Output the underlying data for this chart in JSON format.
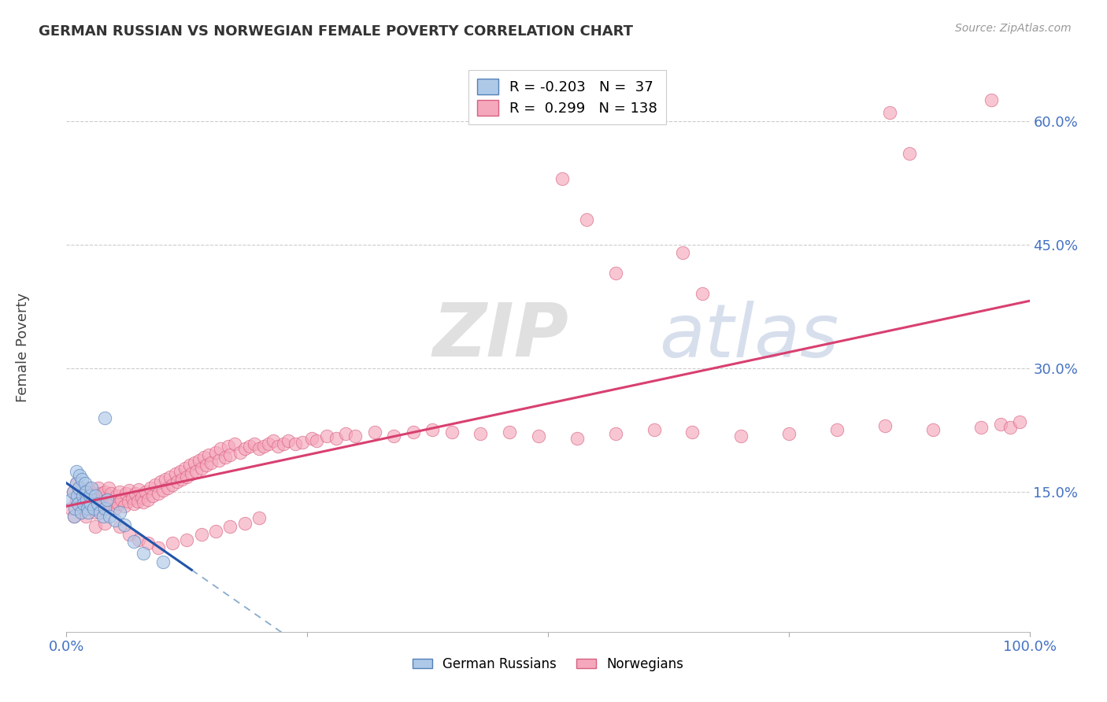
{
  "title": "GERMAN RUSSIAN VS NORWEGIAN FEMALE POVERTY CORRELATION CHART",
  "source": "Source: ZipAtlas.com",
  "ylabel": "Female Poverty",
  "xlim": [
    0.0,
    1.0
  ],
  "ylim": [
    -0.02,
    0.67
  ],
  "yticks": [
    0.15,
    0.3,
    0.45,
    0.6
  ],
  "ytick_labels": [
    "15.0%",
    "30.0%",
    "45.0%",
    "60.0%"
  ],
  "xtick_positions": [
    0.0,
    0.25,
    0.5,
    0.75,
    1.0
  ],
  "xtick_labels": [
    "0.0%",
    "",
    "",
    "",
    "100.0%"
  ],
  "gr_color_fill": "#aec8e8",
  "gr_color_edge": "#5580b8",
  "no_color_fill": "#f5a8bc",
  "no_color_edge": "#d86080",
  "line_blue": "#2255aa",
  "line_pink": "#d84070",
  "line_dashed_color": "#88aacc",
  "legend_R_gr": "-0.203",
  "legend_N_gr": 37,
  "legend_R_no": "0.299",
  "legend_N_no": 138,
  "watermark_zip": "ZIP",
  "watermark_atlas": "atlas",
  "gr_x": [
    0.005,
    0.007,
    0.008,
    0.009,
    0.01,
    0.01,
    0.011,
    0.012,
    0.013,
    0.014,
    0.015,
    0.016,
    0.017,
    0.018,
    0.019,
    0.02,
    0.021,
    0.022,
    0.023,
    0.024,
    0.025,
    0.026,
    0.028,
    0.03,
    0.032,
    0.035,
    0.038,
    0.04,
    0.042,
    0.045,
    0.05,
    0.055,
    0.06,
    0.07,
    0.08,
    0.1,
    0.04
  ],
  "gr_y": [
    0.14,
    0.15,
    0.12,
    0.13,
    0.16,
    0.175,
    0.145,
    0.135,
    0.155,
    0.17,
    0.125,
    0.165,
    0.145,
    0.135,
    0.16,
    0.15,
    0.14,
    0.13,
    0.125,
    0.145,
    0.135,
    0.155,
    0.13,
    0.145,
    0.135,
    0.125,
    0.12,
    0.13,
    0.14,
    0.12,
    0.115,
    0.125,
    0.11,
    0.09,
    0.075,
    0.065,
    0.24
  ],
  "no_x": [
    0.005,
    0.007,
    0.008,
    0.01,
    0.01,
    0.012,
    0.013,
    0.015,
    0.015,
    0.017,
    0.018,
    0.019,
    0.02,
    0.02,
    0.022,
    0.023,
    0.025,
    0.026,
    0.028,
    0.03,
    0.03,
    0.032,
    0.033,
    0.035,
    0.036,
    0.038,
    0.04,
    0.04,
    0.042,
    0.044,
    0.045,
    0.046,
    0.048,
    0.05,
    0.052,
    0.054,
    0.055,
    0.057,
    0.06,
    0.062,
    0.064,
    0.065,
    0.068,
    0.07,
    0.072,
    0.074,
    0.075,
    0.078,
    0.08,
    0.082,
    0.085,
    0.087,
    0.09,
    0.092,
    0.095,
    0.098,
    0.1,
    0.103,
    0.105,
    0.108,
    0.11,
    0.113,
    0.115,
    0.118,
    0.12,
    0.123,
    0.125,
    0.128,
    0.13,
    0.133,
    0.135,
    0.138,
    0.14,
    0.143,
    0.145,
    0.148,
    0.15,
    0.155,
    0.158,
    0.16,
    0.165,
    0.168,
    0.17,
    0.175,
    0.18,
    0.185,
    0.19,
    0.195,
    0.2,
    0.205,
    0.21,
    0.215,
    0.22,
    0.225,
    0.23,
    0.238,
    0.245,
    0.255,
    0.26,
    0.27,
    0.28,
    0.29,
    0.3,
    0.32,
    0.34,
    0.36,
    0.38,
    0.4,
    0.43,
    0.46,
    0.49,
    0.53,
    0.57,
    0.61,
    0.65,
    0.7,
    0.75,
    0.8,
    0.85,
    0.9,
    0.95,
    0.97,
    0.98,
    0.99,
    0.03,
    0.04,
    0.055,
    0.065,
    0.075,
    0.085,
    0.095,
    0.11,
    0.125,
    0.14,
    0.155,
    0.17,
    0.185,
    0.2
  ],
  "no_y": [
    0.13,
    0.15,
    0.12,
    0.16,
    0.14,
    0.135,
    0.155,
    0.125,
    0.145,
    0.14,
    0.13,
    0.15,
    0.12,
    0.145,
    0.135,
    0.155,
    0.13,
    0.145,
    0.135,
    0.125,
    0.148,
    0.138,
    0.155,
    0.128,
    0.148,
    0.138,
    0.13,
    0.15,
    0.14,
    0.155,
    0.135,
    0.148,
    0.138,
    0.13,
    0.145,
    0.135,
    0.15,
    0.14,
    0.133,
    0.148,
    0.138,
    0.152,
    0.142,
    0.135,
    0.148,
    0.138,
    0.153,
    0.143,
    0.137,
    0.15,
    0.14,
    0.155,
    0.145,
    0.158,
    0.148,
    0.162,
    0.152,
    0.165,
    0.155,
    0.168,
    0.158,
    0.172,
    0.162,
    0.175,
    0.165,
    0.178,
    0.168,
    0.182,
    0.172,
    0.185,
    0.175,
    0.188,
    0.178,
    0.192,
    0.182,
    0.195,
    0.185,
    0.198,
    0.188,
    0.202,
    0.192,
    0.205,
    0.195,
    0.208,
    0.198,
    0.202,
    0.205,
    0.208,
    0.202,
    0.205,
    0.208,
    0.212,
    0.205,
    0.208,
    0.212,
    0.208,
    0.21,
    0.215,
    0.212,
    0.218,
    0.215,
    0.22,
    0.218,
    0.222,
    0.218,
    0.222,
    0.225,
    0.222,
    0.22,
    0.222,
    0.218,
    0.215,
    0.22,
    0.225,
    0.222,
    0.218,
    0.22,
    0.225,
    0.23,
    0.225,
    0.228,
    0.232,
    0.228,
    0.235,
    0.108,
    0.112,
    0.108,
    0.098,
    0.092,
    0.088,
    0.082,
    0.088,
    0.092,
    0.098,
    0.102,
    0.108,
    0.112,
    0.118
  ],
  "no_x_outliers": [
    0.515,
    0.54,
    0.57,
    0.64,
    0.66,
    0.855,
    0.875,
    0.96
  ],
  "no_y_outliers": [
    0.53,
    0.48,
    0.415,
    0.44,
    0.39,
    0.61,
    0.56,
    0.625
  ]
}
